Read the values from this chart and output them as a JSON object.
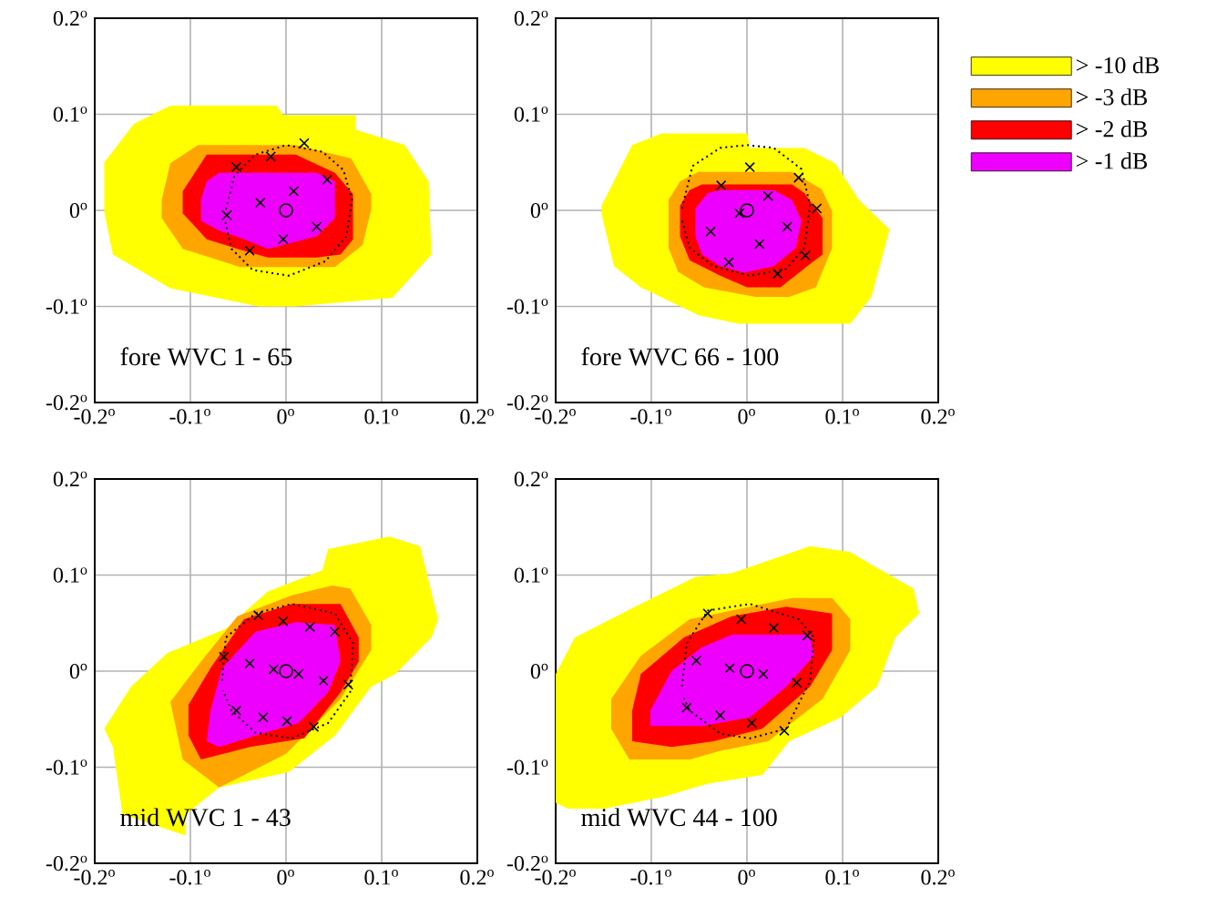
{
  "chart_data": [
    {
      "type": "area",
      "xlim": [
        -0.2,
        0.2
      ],
      "ylim": [
        -0.2,
        0.2
      ],
      "grid": true,
      "annotations": [
        "fore WVC 1 - 65"
      ],
      "xticks": [
        {
          "value": -0.2,
          "label": "-0.2$^{o}$"
        },
        {
          "value": -0.1,
          "label": "-0.1$^{o}$"
        },
        {
          "value": 0,
          "label": "0$^{o}$"
        },
        {
          "value": 0.1,
          "label": "0.1$^{o}$"
        },
        {
          "value": 0.2,
          "label": "0.2$^{o}$"
        }
      ],
      "yticks": [
        {
          "value": -0.2,
          "label": "-0.2$^{o}$"
        },
        {
          "value": -0.1,
          "label": "-0.1$^{o}$"
        },
        {
          "value": 0,
          "label": "0$^{o}$"
        },
        {
          "value": 0.1,
          "label": "0.1$^{o}$"
        },
        {
          "value": 0.2,
          "label": "0.2$^{o}$"
        }
      ],
      "series": [
        {
          "color": "#ffff00",
          "x": [
            -0.19,
            -0.159,
            -0.121,
            -0.01,
            -0.003,
            0.073,
            0.073,
            0.124,
            0.149,
            0.152,
            0.111,
            0.01,
            -0.029,
            -0.121,
            -0.181,
            -0.19
          ],
          "values": [
            0.05,
            0.09,
            0.109,
            0.109,
            0.099,
            0.099,
            0.084,
            0.068,
            0.03,
            -0.046,
            -0.091,
            -0.1,
            -0.1,
            -0.081,
            -0.046,
            -0.002
          ]
        },
        {
          "color": "#ffa500",
          "x": [
            -0.121,
            -0.092,
            0.01,
            0.068,
            0.089,
            0.089,
            0.08,
            0.051,
            -0.048,
            -0.108,
            -0.13,
            -0.13
          ],
          "values": [
            0.049,
            0.068,
            0.068,
            0.054,
            0.017,
            0.001,
            -0.036,
            -0.059,
            -0.059,
            -0.04,
            -0.008,
            0.011
          ]
        },
        {
          "color": "#ff0000",
          "x": [
            -0.108,
            -0.083,
            0.01,
            0.051,
            0.07,
            0.07,
            0.057,
            0.032,
            -0.019,
            -0.051,
            -0.083,
            -0.108
          ],
          "values": [
            0.02,
            0.058,
            0.058,
            0.039,
            0.017,
            -0.03,
            -0.046,
            -0.049,
            -0.049,
            -0.04,
            -0.03,
            -0.003
          ]
        },
        {
          "color": "#ee00ff",
          "x": [
            -0.083,
            -0.07,
            0.032,
            0.051,
            0.051,
            0.032,
            -0.019,
            -0.044,
            -0.07,
            -0.089,
            -0.089
          ],
          "values": [
            0.03,
            0.039,
            0.039,
            0.03,
            -0.008,
            -0.027,
            -0.04,
            -0.03,
            -0.021,
            -0.011,
            0.011
          ]
        },
        {
          "type": "line",
          "color": "#000000",
          "line_style": "dotted",
          "x": [
            -0.063,
            -0.054,
            -0.032,
            0,
            0.038,
            0.06,
            0.069,
            0.063,
            0.041,
            0.003,
            -0.035,
            -0.057,
            -0.064
          ],
          "values": [
            0.001,
            0.036,
            0.058,
            0.068,
            0.061,
            0.042,
            0.011,
            -0.027,
            -0.053,
            -0.068,
            -0.062,
            -0.04,
            -0.01
          ]
        },
        {
          "type": "scatter",
          "color": "#000000",
          "marker": "cross",
          "x": [
            -0.052,
            -0.016,
            0.019,
            0.043,
            0.008,
            -0.027,
            -0.062,
            0.032,
            -0.003,
            -0.038
          ],
          "values": [
            0.045,
            0.056,
            0.07,
            0.032,
            0.02,
            0.008,
            -0.005,
            -0.017,
            -0.03,
            -0.042
          ]
        },
        {
          "type": "scatter",
          "color": "#000000",
          "marker": "circle",
          "x": [
            0
          ],
          "values": [
            0
          ]
        }
      ]
    },
    {
      "type": "area",
      "xlim": [
        -0.2,
        0.2
      ],
      "ylim": [
        -0.2,
        0.2
      ],
      "grid": true,
      "legend": "top right",
      "annotations": [
        "fore WVC 66 - 100"
      ],
      "xticks": [
        {
          "value": -0.2,
          "label": "-0.2$^{o}$"
        },
        {
          "value": -0.1,
          "label": "-0.1$^{o}$"
        },
        {
          "value": 0,
          "label": "0$^{o}$"
        },
        {
          "value": 0.1,
          "label": "0.1$^{o}$"
        },
        {
          "value": 0.2,
          "label": "0.2$^{o}$"
        }
      ],
      "yticks": [
        {
          "value": -0.2,
          "label": "-0.2$^{o}$"
        },
        {
          "value": -0.1,
          "label": "-0.1$^{o}$"
        },
        {
          "value": 0,
          "label": "0$^{o}$"
        },
        {
          "value": 0.1,
          "label": "0.1$^{o}$"
        },
        {
          "value": 0.2,
          "label": "0.2$^{o}$"
        }
      ],
      "series": [
        {
          "name": ">  -10 dB",
          "color": "#ffff00",
          "x": [
            -0.152,
            -0.12,
            -0.089,
            0,
            0.003,
            0.06,
            0.092,
            0.117,
            0.149,
            0.13,
            0.108,
            -0.009,
            -0.051,
            -0.111,
            -0.139,
            -0.152
          ],
          "values": [
            0.005,
            0.068,
            0.08,
            0.08,
            0.065,
            0.065,
            0.049,
            0.011,
            -0.02,
            -0.09,
            -0.118,
            -0.118,
            -0.109,
            -0.08,
            -0.058,
            -0.004
          ]
        },
        {
          "name": ">  -3 dB",
          "color": "#ffa500",
          "x": [
            -0.082,
            -0.07,
            -0.051,
            0.047,
            0.078,
            0.089,
            0.089,
            0.072,
            0.044,
            0.009,
            -0.045,
            -0.072,
            -0.082
          ],
          "values": [
            0.011,
            0.03,
            0.04,
            0.04,
            0.022,
            -0.001,
            -0.039,
            -0.08,
            -0.09,
            -0.09,
            -0.08,
            -0.064,
            -0.039
          ]
        },
        {
          "name": ">  -2 dB",
          "color": "#ff0000",
          "x": [
            -0.07,
            -0.06,
            -0.047,
            0.047,
            0.06,
            0.079,
            0.079,
            0.063,
            0.035,
            0,
            -0.028,
            -0.06,
            -0.07
          ],
          "values": [
            0.005,
            0.021,
            0.027,
            0.027,
            0.018,
            -0.008,
            -0.046,
            -0.058,
            -0.08,
            -0.08,
            -0.068,
            -0.052,
            -0.027
          ]
        },
        {
          "name": ">  -1 dB",
          "color": "#ee00ff",
          "x": [
            -0.054,
            -0.041,
            -0.028,
            0.028,
            0.047,
            0.057,
            0.051,
            0.028,
            -0.003,
            -0.028,
            -0.047,
            -0.054
          ],
          "values": [
            0.002,
            0.018,
            0.021,
            0.021,
            0.011,
            -0.011,
            -0.039,
            -0.058,
            -0.065,
            -0.058,
            -0.046,
            -0.027
          ]
        },
        {
          "type": "line",
          "color": "#000000",
          "line_style": "dotted",
          "x": [
            -0.068,
            -0.057,
            -0.028,
            0,
            0.028,
            0.057,
            0.066,
            0.06,
            0.041,
            0.003,
            -0.035,
            -0.06,
            -0.068
          ],
          "values": [
            0.002,
            0.046,
            0.065,
            0.068,
            0.065,
            0.043,
            0.005,
            -0.039,
            -0.061,
            -0.068,
            -0.058,
            -0.039,
            -0.01
          ]
        },
        {
          "type": "scatter",
          "color": "#000000",
          "marker": "cross",
          "x": [
            0.003,
            0.054,
            -0.027,
            0.022,
            0.073,
            -0.008,
            -0.038,
            0.042,
            0.013,
            0.061,
            -0.019,
            0.032
          ],
          "values": [
            0.045,
            0.034,
            0.026,
            0.015,
            0.002,
            -0.003,
            -0.022,
            -0.017,
            -0.035,
            -0.047,
            -0.054,
            -0.066
          ]
        },
        {
          "type": "scatter",
          "color": "#000000",
          "marker": "circle",
          "x": [
            0
          ],
          "values": [
            0
          ]
        }
      ]
    },
    {
      "type": "area",
      "xlim": [
        -0.2,
        0.2
      ],
      "ylim": [
        -0.2,
        0.2
      ],
      "grid": true,
      "annotations": [
        "mid WVC 1 - 43"
      ],
      "xticks": [
        {
          "value": -0.2,
          "label": "-0.2$^{o}$"
        },
        {
          "value": -0.1,
          "label": "-0.1$^{o}$"
        },
        {
          "value": 0,
          "label": "0$^{o}$"
        },
        {
          "value": 0.1,
          "label": "0.1$^{o}$"
        },
        {
          "value": 0.2,
          "label": "0.2$^{o}$"
        }
      ],
      "yticks": [
        {
          "value": -0.2,
          "label": "-0.2$^{o}$"
        },
        {
          "value": -0.1,
          "label": "-0.1$^{o}$"
        },
        {
          "value": 0,
          "label": "0$^{o}$"
        },
        {
          "value": 0.1,
          "label": "0.1$^{o}$"
        },
        {
          "value": 0.2,
          "label": "0.2$^{o}$"
        }
      ],
      "series": [
        {
          "color": "#ffff00",
          "x": [
            -0.19,
            -0.162,
            -0.124,
            -0.063,
            -0.019,
            0.038,
            0.044,
            0.108,
            0.14,
            0.159,
            0.152,
            0.114,
            0.089,
            0.051,
            0.003,
            -0.07,
            -0.105,
            -0.105,
            -0.171,
            -0.181
          ],
          "values": [
            -0.06,
            -0.016,
            0.019,
            0.044,
            0.083,
            0.105,
            0.127,
            0.14,
            0.13,
            0.054,
            0.035,
            -0.003,
            -0.016,
            -0.067,
            -0.105,
            -0.121,
            -0.149,
            -0.171,
            -0.149,
            -0.079
          ]
        },
        {
          "color": "#ffa500",
          "x": [
            -0.121,
            -0.089,
            -0.051,
            0.006,
            0.048,
            0.067,
            0.089,
            0.089,
            0.057,
            0,
            -0.07,
            -0.108
          ],
          "values": [
            -0.032,
            0.01,
            0.057,
            0.079,
            0.089,
            0.086,
            0.048,
            0.022,
            -0.029,
            -0.086,
            -0.121,
            -0.092
          ]
        },
        {
          "color": "#ff0000",
          "x": [
            -0.102,
            -0.079,
            -0.044,
            0.006,
            0.057,
            0.076,
            0.076,
            0.057,
            0.019,
            -0.038,
            -0.089,
            -0.102
          ],
          "values": [
            -0.035,
            0.003,
            0.054,
            0.07,
            0.07,
            0.035,
            0.01,
            -0.022,
            -0.07,
            -0.079,
            -0.092,
            -0.067
          ]
        },
        {
          "color": "#ee00ff",
          "x": [
            -0.079,
            -0.067,
            -0.032,
            0.01,
            0.051,
            0.057,
            0.044,
            0.013,
            -0.032,
            -0.07,
            -0.083
          ],
          "values": [
            -0.041,
            0.003,
            0.041,
            0.051,
            0.048,
            0.01,
            -0.022,
            -0.054,
            -0.067,
            -0.079,
            -0.073
          ]
        },
        {
          "type": "line",
          "color": "#000000",
          "line_style": "dotted",
          "x": [
            -0.067,
            -0.063,
            -0.032,
            0.006,
            0.051,
            0.07,
            0.067,
            0.044,
            0.006,
            -0.032,
            -0.057,
            -0.066
          ],
          "values": [
            -0.01,
            0.035,
            0.06,
            0.07,
            0.06,
            0.029,
            -0.022,
            -0.054,
            -0.07,
            -0.064,
            -0.041,
            -0.02
          ]
        },
        {
          "type": "scatter",
          "color": "#000000",
          "marker": "cross",
          "x": [
            -0.029,
            -0.003,
            0.025,
            0.051,
            -0.065,
            -0.038,
            -0.013,
            0.013,
            0.039,
            0.065,
            -0.052,
            -0.024,
            0.001,
            0.029
          ],
          "values": [
            0.058,
            0.052,
            0.046,
            0.041,
            0.015,
            0.008,
            0.002,
            -0.003,
            -0.01,
            -0.014,
            -0.041,
            -0.048,
            -0.052,
            -0.058
          ]
        },
        {
          "type": "scatter",
          "color": "#000000",
          "marker": "circle",
          "x": [
            0
          ],
          "values": [
            0
          ]
        }
      ]
    },
    {
      "type": "area",
      "xlim": [
        -0.2,
        0.2
      ],
      "ylim": [
        -0.2,
        0.2
      ],
      "grid": true,
      "annotations": [
        "mid WVC 44 - 100"
      ],
      "xticks": [
        {
          "value": -0.2,
          "label": "-0.2$^{o}$"
        },
        {
          "value": -0.1,
          "label": "-0.1$^{o}$"
        },
        {
          "value": 0,
          "label": "0$^{o}$"
        },
        {
          "value": 0.1,
          "label": "0.1$^{o}$"
        },
        {
          "value": 0.2,
          "label": "0.2$^{o}$"
        }
      ],
      "yticks": [
        {
          "value": -0.2,
          "label": "-0.2$^{o}$"
        },
        {
          "value": -0.1,
          "label": "-0.1$^{o}$"
        },
        {
          "value": 0,
          "label": "0$^{o}$"
        },
        {
          "value": 0.1,
          "label": "0.1$^{o}$"
        },
        {
          "value": 0.2,
          "label": "0.2$^{o}$"
        }
      ],
      "series": [
        {
          "color": "#ffff00",
          "x": [
            -0.2,
            -0.18,
            -0.117,
            -0.054,
            -0.016,
            0.066,
            0.108,
            0.13,
            0.174,
            0.18,
            0.155,
            0.136,
            0.098,
            0.044,
            0.016,
            -0.041,
            -0.085,
            -0.149,
            -0.187,
            -0.2
          ],
          "values": [
            -0.003,
            0.035,
            0.067,
            0.098,
            0.102,
            0.13,
            0.124,
            0.111,
            0.086,
            0.06,
            0.035,
            -0.016,
            -0.048,
            -0.073,
            -0.108,
            -0.117,
            -0.13,
            -0.143,
            -0.143,
            -0.137
          ]
        },
        {
          "color": "#ffa500",
          "x": [
            -0.142,
            -0.111,
            -0.06,
            0.003,
            0.047,
            0.089,
            0.108,
            0.108,
            0.079,
            0.022,
            -0.028,
            -0.06,
            -0.123,
            -0.142
          ],
          "values": [
            -0.029,
            0.016,
            0.054,
            0.067,
            0.076,
            0.076,
            0.054,
            0.022,
            -0.029,
            -0.073,
            -0.083,
            -0.092,
            -0.092,
            -0.06
          ]
        },
        {
          "color": "#ff0000",
          "x": [
            -0.12,
            -0.111,
            -0.066,
            -0.016,
            0.041,
            0.089,
            0.089,
            0.066,
            0.016,
            -0.035,
            -0.079,
            -0.12
          ],
          "values": [
            -0.041,
            -0.003,
            0.035,
            0.057,
            0.067,
            0.06,
            0.022,
            -0.016,
            -0.06,
            -0.073,
            -0.079,
            -0.073
          ]
        },
        {
          "color": "#ee00ff",
          "x": [
            -0.101,
            -0.079,
            -0.047,
            -0.016,
            0.066,
            0.07,
            0.041,
            0.003,
            -0.047,
            -0.101
          ],
          "values": [
            -0.041,
            0,
            0.025,
            0.038,
            0.038,
            0.016,
            -0.016,
            -0.048,
            -0.057,
            -0.057
          ]
        },
        {
          "type": "line",
          "color": "#000000",
          "line_style": "dotted",
          "x": [
            -0.068,
            -0.063,
            -0.041,
            0.003,
            0.054,
            0.07,
            0.066,
            0.041,
            0.003,
            -0.028,
            -0.06,
            -0.067
          ],
          "values": [
            -0.016,
            0.029,
            0.063,
            0.07,
            0.054,
            0.035,
            -0.01,
            -0.06,
            -0.07,
            -0.065,
            -0.041,
            -0.026
          ]
        },
        {
          "type": "scatter",
          "color": "#000000",
          "marker": "cross",
          "x": [
            -0.041,
            -0.006,
            0.028,
            0.063,
            -0.053,
            -0.018,
            0.017,
            0.052,
            -0.063,
            -0.028,
            0.005,
            0.039
          ],
          "values": [
            0.06,
            0.054,
            0.045,
            0.037,
            0.011,
            0.003,
            -0.003,
            -0.012,
            -0.038,
            -0.046,
            -0.054,
            -0.062
          ]
        },
        {
          "type": "scatter",
          "color": "#000000",
          "marker": "circle",
          "x": [
            0
          ],
          "values": [
            0
          ]
        }
      ]
    }
  ]
}
